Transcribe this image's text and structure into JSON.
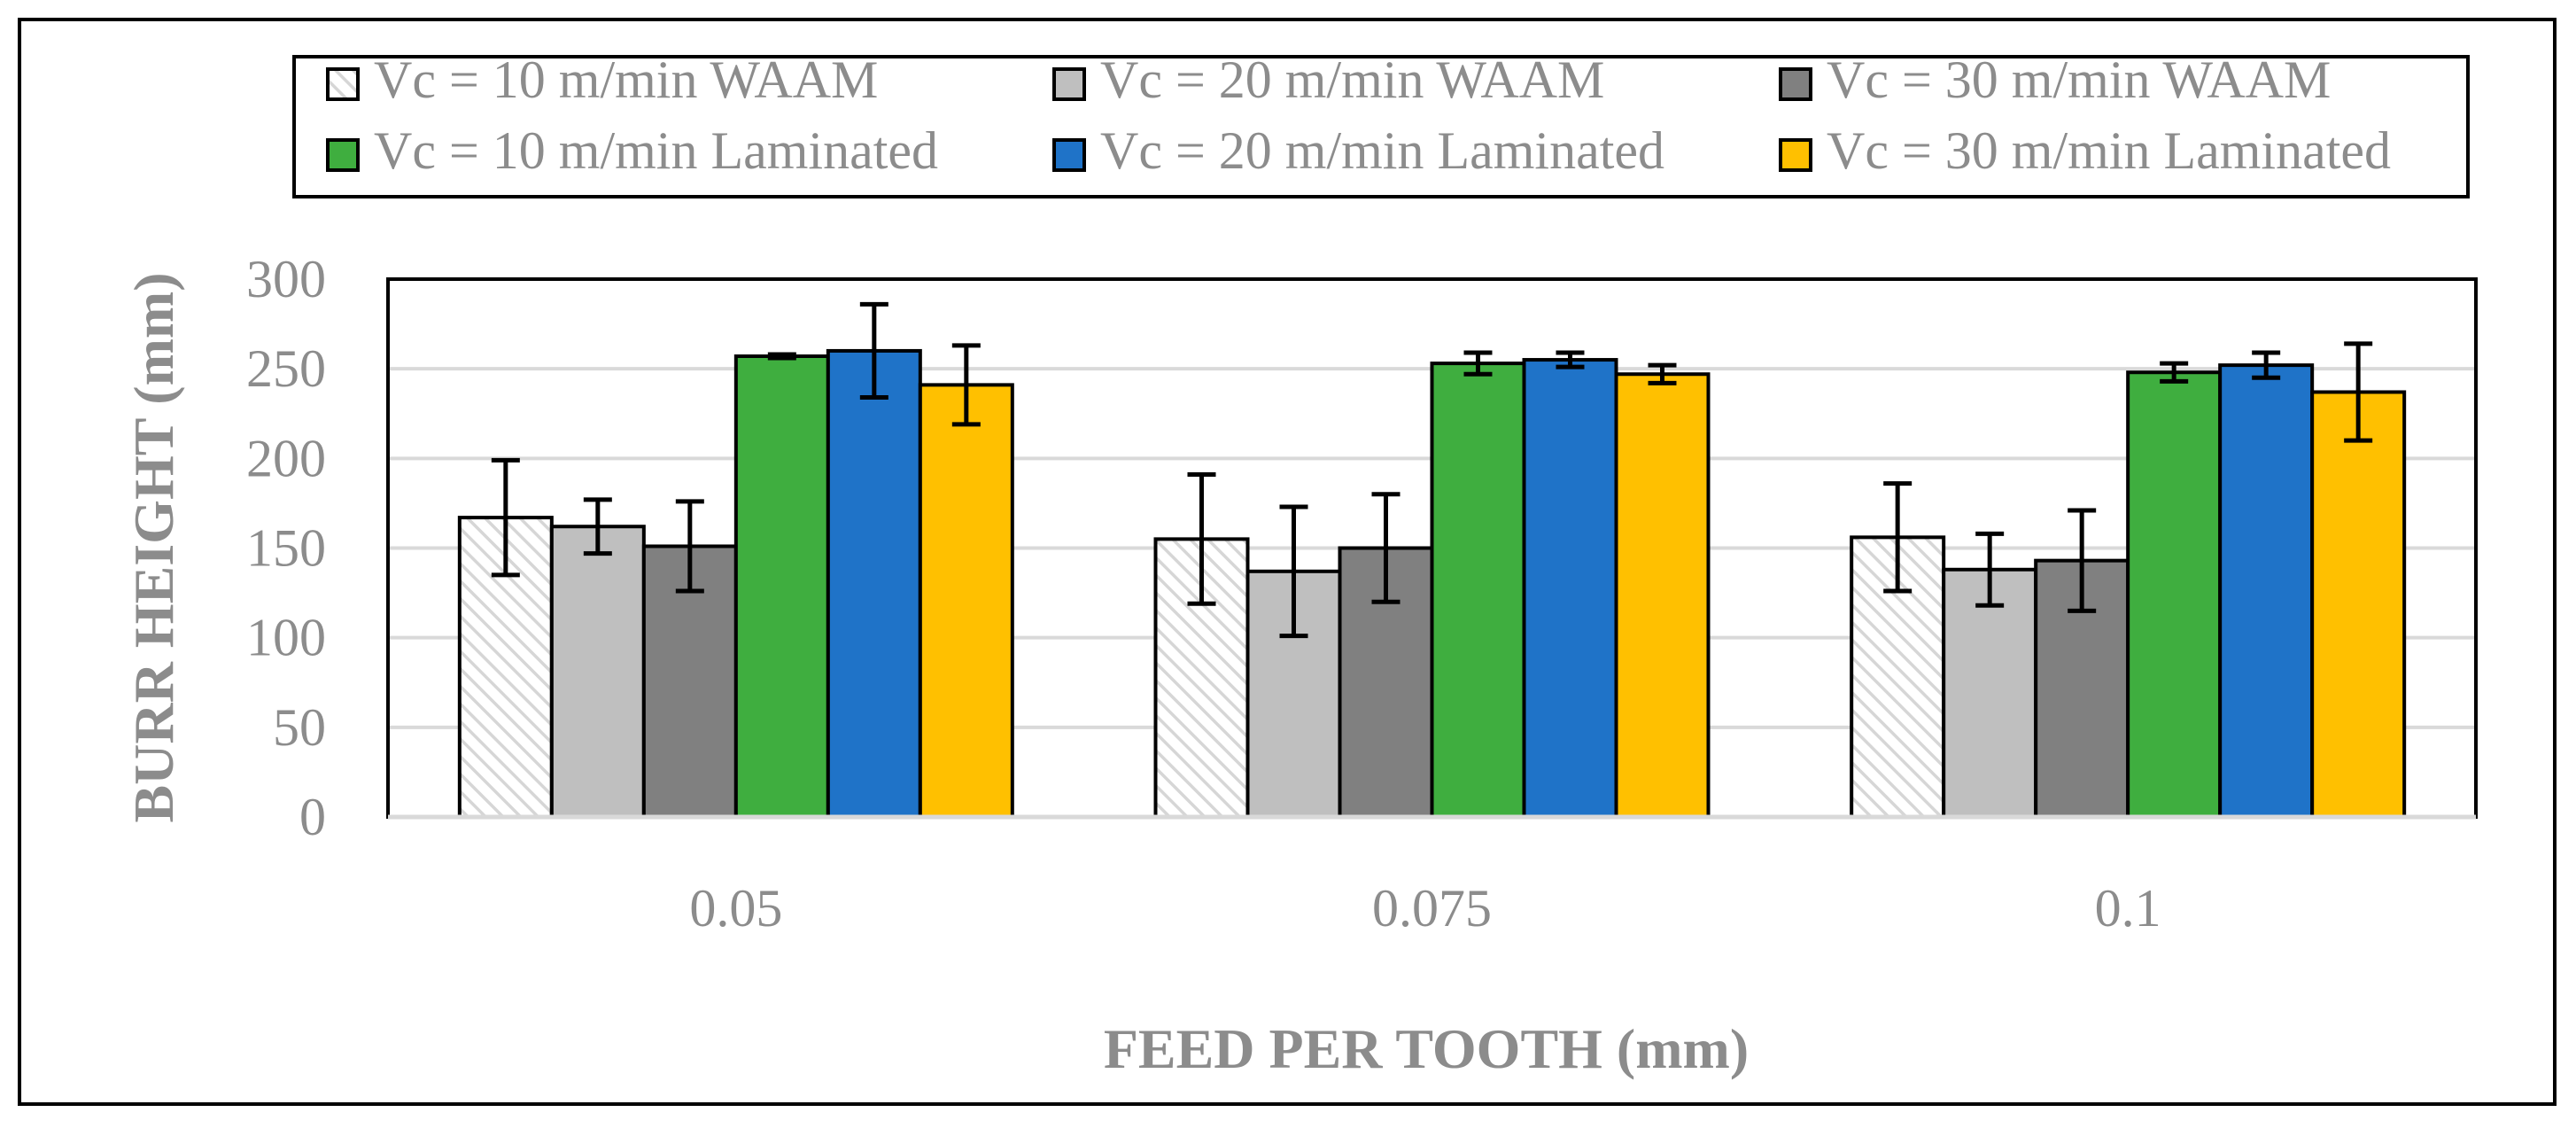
{
  "chart_data": {
    "type": "bar",
    "title": "",
    "xlabel": "FEED PER TOOTH (mm)",
    "ylabel": "BURR HEIGHT  (mm)",
    "categories": [
      "0.05",
      "0.075",
      "0.1"
    ],
    "ylim": [
      0,
      300
    ],
    "yticks": [
      0,
      50,
      100,
      150,
      200,
      250,
      300
    ],
    "grid": true,
    "legend_position": "top",
    "series": [
      {
        "name": "Vc = 10 m/min WAAM",
        "color": "#ffffff",
        "pattern": "hatch",
        "values": [
          167,
          155,
          156
        ],
        "errors": [
          32,
          36,
          30
        ]
      },
      {
        "name": "Vc = 20 m/min WAAM",
        "color": "#bfbfbf",
        "values": [
          162,
          137,
          138
        ],
        "errors": [
          15,
          36,
          20
        ]
      },
      {
        "name": "Vc = 30 m/min WAAM",
        "color": "#808080",
        "values": [
          151,
          150,
          143
        ],
        "errors": [
          25,
          30,
          28
        ]
      },
      {
        "name": "Vc = 10 m/min Laminated",
        "color": "#3fae3f",
        "values": [
          257,
          253,
          248
        ],
        "errors": [
          1,
          6,
          5
        ]
      },
      {
        "name": "Vc = 20 m/min Laminated",
        "color": "#1f73c8",
        "values": [
          260,
          255,
          252
        ],
        "errors": [
          26,
          4,
          7
        ]
      },
      {
        "name": "Vc = 30 m/min Laminated",
        "color": "#ffc000",
        "values": [
          241,
          247,
          237
        ],
        "errors": [
          22,
          5,
          27
        ]
      }
    ]
  }
}
